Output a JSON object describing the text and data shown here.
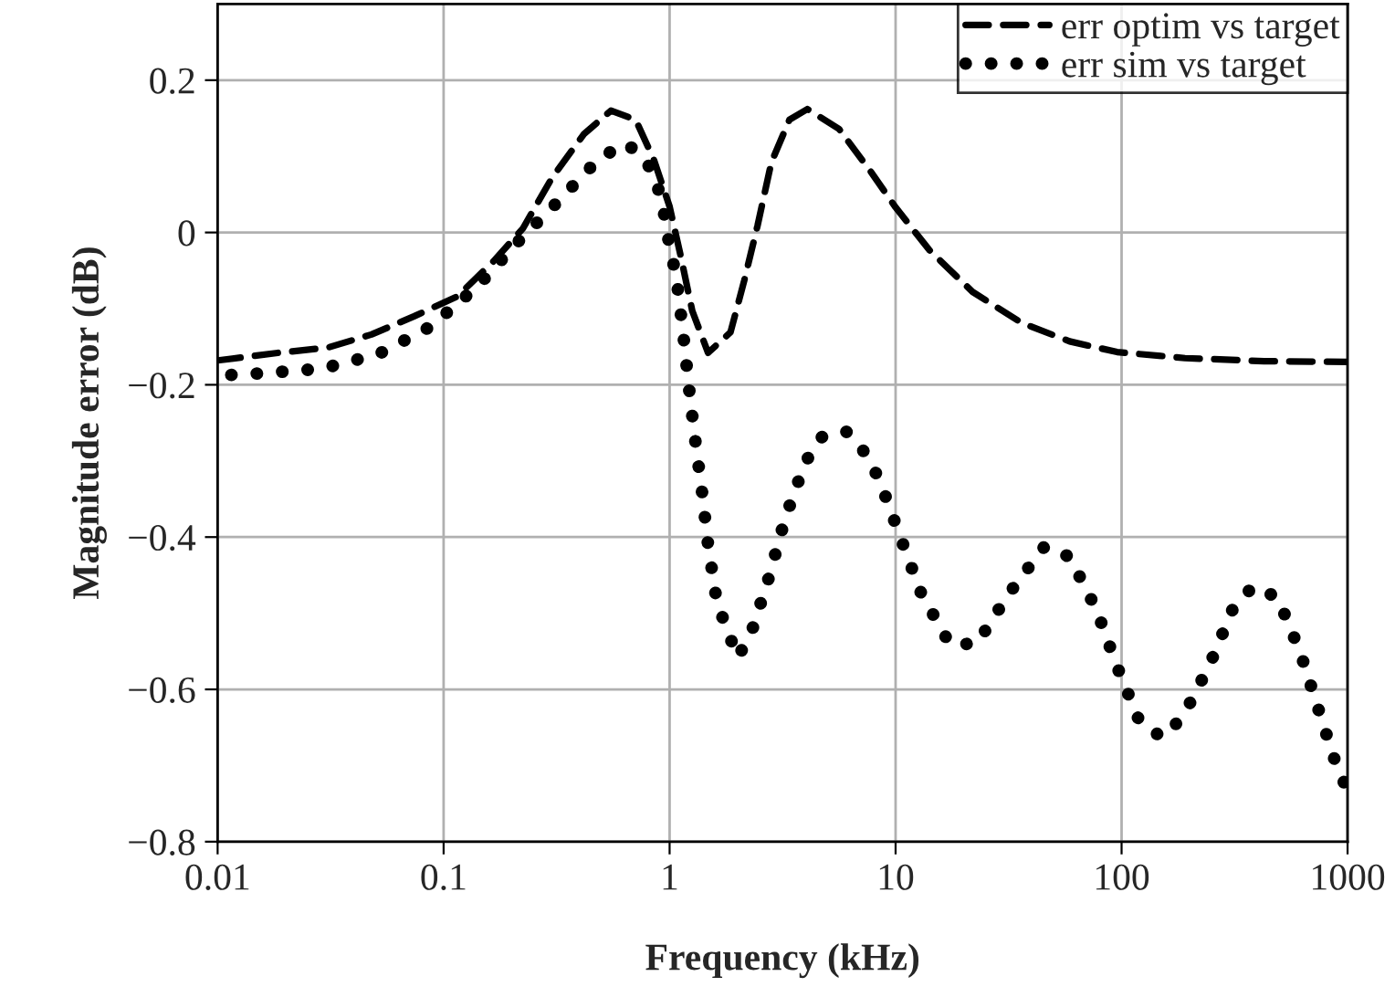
{
  "chart_data": {
    "type": "line",
    "xlabel": "Frequency (kHz)",
    "ylabel": "Magnitude error (dB)",
    "log": "x",
    "grid": true,
    "legend": "top right",
    "xlim": [
      0.01,
      1000
    ],
    "xticks": [
      0.01,
      0.1,
      1,
      10,
      100,
      1000
    ],
    "ylim": [
      -0.8,
      0.3
    ],
    "yticks": [
      {
        "value": -0.8,
        "label": "−0.8"
      },
      {
        "value": -0.6,
        "label": "−0.6"
      },
      {
        "value": -0.4,
        "label": "−0.4"
      },
      {
        "value": -0.2,
        "label": "−0.2"
      },
      0,
      0.2
    ],
    "series": [
      {
        "name": "err optim vs target",
        "color": "#000000",
        "line_style": "dashed",
        "x": [
          0.01,
          0.0186,
          0.0309,
          0.0479,
          0.0741,
          0.115,
          0.166,
          0.224,
          0.302,
          0.417,
          0.55,
          0.708,
          0.851,
          1.0,
          1.12,
          1.26,
          1.48,
          1.86,
          2.14,
          2.45,
          2.82,
          3.39,
          4.07,
          5.62,
          7.76,
          10,
          14.1,
          21.9,
          36.3,
          58.9,
          95.5,
          191,
          427,
          1000
        ],
        "values": [
          -0.168,
          -0.158,
          -0.151,
          -0.134,
          -0.11,
          -0.084,
          -0.038,
          0.005,
          0.072,
          0.129,
          0.16,
          0.148,
          0.096,
          0.034,
          -0.031,
          -0.103,
          -0.158,
          -0.131,
          -0.063,
          0.009,
          0.092,
          0.148,
          0.162,
          0.136,
          0.08,
          0.033,
          -0.023,
          -0.078,
          -0.119,
          -0.143,
          -0.157,
          -0.165,
          -0.169,
          -0.17
        ]
      },
      {
        "name": "err sim vs target",
        "color": "#000000",
        "line_style": "dotted",
        "x": [
          0.0115,
          0.0155,
          0.0288,
          0.0513,
          0.0871,
          0.141,
          0.209,
          0.324,
          0.49,
          0.646,
          0.794,
          0.891,
          0.955,
          1.0,
          1.07,
          1.15,
          1.23,
          1.32,
          1.38,
          1.48,
          1.62,
          2.0,
          2.29,
          2.75,
          3.24,
          3.98,
          4.68,
          6.03,
          7.41,
          8.51,
          10.5,
          12.9,
          17.4,
          22.9,
          31.6,
          45.7,
          58.9,
          77.6,
          95.5,
          120,
          151,
          186,
          245,
          309,
          380,
          490,
          617,
          741,
          891,
          1000
        ],
        "values": [
          -0.187,
          -0.185,
          -0.179,
          -0.16,
          -0.124,
          -0.071,
          -0.015,
          0.042,
          0.098,
          0.117,
          0.093,
          0.057,
          0.019,
          -0.019,
          -0.057,
          -0.134,
          -0.215,
          -0.29,
          -0.331,
          -0.41,
          -0.486,
          -0.558,
          -0.527,
          -0.453,
          -0.376,
          -0.302,
          -0.269,
          -0.261,
          -0.291,
          -0.326,
          -0.4,
          -0.472,
          -0.541,
          -0.54,
          -0.475,
          -0.412,
          -0.426,
          -0.496,
          -0.57,
          -0.642,
          -0.663,
          -0.637,
          -0.568,
          -0.496,
          -0.465,
          -0.479,
          -0.551,
          -0.625,
          -0.699,
          -0.733
        ]
      }
    ]
  }
}
